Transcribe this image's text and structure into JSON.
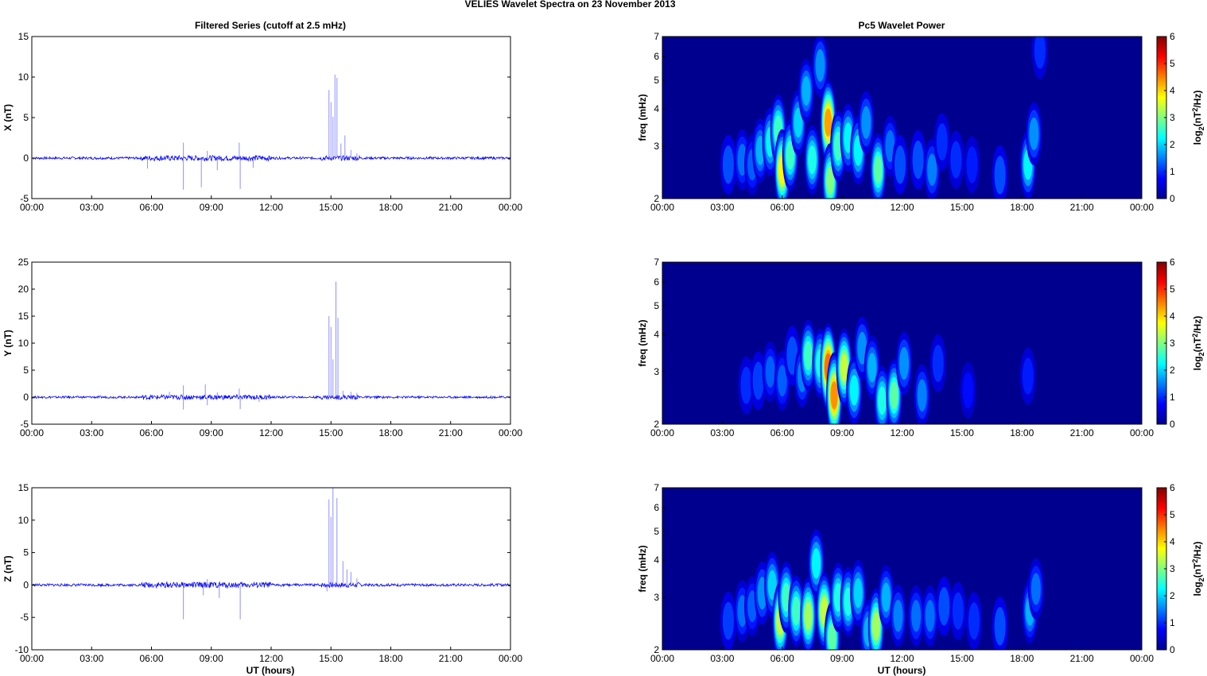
{
  "figure_title": "VELIES Wavelet Spectra on 23 November  2013",
  "left_title": "Filtered Series (cutoff at 2.5 mHz)",
  "right_title": "Pc5 Wavelet Power",
  "xlabel": "UT (hours)",
  "spectra_ylabel": "freq (mHz)",
  "colorbar_label_base": "log",
  "colorbar_label_sub": "2",
  "colorbar_label_mid": "(nT",
  "colorbar_label_sup": "2",
  "colorbar_label_end": "/Hz)",
  "colormap": [
    "#00008f",
    "#0000ff",
    "#0080ff",
    "#00ffff",
    "#80ff80",
    "#ffff00",
    "#ff8000",
    "#ff0000",
    "#800000"
  ],
  "series_color": "#0000ff",
  "spike_color": "#8f8fff",
  "chart_data": [
    {
      "type": "line",
      "title": "Filtered Series (cutoff at 2.5 mHz)",
      "xlabel": "",
      "ylabel": "X (nT)",
      "xlim": [
        0,
        24
      ],
      "ylim": [
        -5,
        15
      ],
      "xticks": [
        "00:00",
        "03:00",
        "06:00",
        "09:00",
        "12:00",
        "15:00",
        "18:00",
        "21:00",
        "00:00"
      ],
      "yticks": [
        -5,
        0,
        5,
        10,
        15
      ],
      "baseline_noise": 0.15,
      "spikes": [
        [
          5.8,
          -1.3
        ],
        [
          7.6,
          1.9
        ],
        [
          7.6,
          -3.9
        ],
        [
          8.5,
          -3.6
        ],
        [
          8.8,
          0.9
        ],
        [
          9.3,
          -1.5
        ],
        [
          10.4,
          1.9
        ],
        [
          10.45,
          -3.8
        ],
        [
          11.1,
          -1.2
        ],
        [
          14.9,
          8.4
        ],
        [
          15.0,
          6.9
        ],
        [
          15.1,
          5.1
        ],
        [
          15.2,
          10.3
        ],
        [
          15.3,
          9.9
        ],
        [
          15.5,
          1.8
        ],
        [
          15.7,
          2.8
        ],
        [
          16.0,
          1.0
        ],
        [
          16.3,
          0.6
        ]
      ]
    },
    {
      "type": "line",
      "title": "",
      "xlabel": "",
      "ylabel": "Y (nT)",
      "xlim": [
        0,
        24
      ],
      "ylim": [
        -5,
        25
      ],
      "xticks": [
        "00:00",
        "03:00",
        "06:00",
        "09:00",
        "12:00",
        "15:00",
        "18:00",
        "21:00",
        "00:00"
      ],
      "yticks": [
        -5,
        0,
        5,
        10,
        15,
        20,
        25
      ],
      "baseline_noise": 0.2,
      "spikes": [
        [
          6.9,
          1.0
        ],
        [
          7.6,
          2.2
        ],
        [
          7.6,
          -2.3
        ],
        [
          8.7,
          2.4
        ],
        [
          8.8,
          -1.5
        ],
        [
          9.3,
          0.9
        ],
        [
          10.4,
          1.6
        ],
        [
          10.45,
          -2.2
        ],
        [
          11.4,
          -0.9
        ],
        [
          14.9,
          15.0
        ],
        [
          15.0,
          13.0
        ],
        [
          15.1,
          7.0
        ],
        [
          15.25,
          21.4
        ],
        [
          15.35,
          14.7
        ],
        [
          15.6,
          1.2
        ],
        [
          16.0,
          1.0
        ],
        [
          16.3,
          0.8
        ]
      ]
    },
    {
      "type": "line",
      "title": "",
      "xlabel": "UT (hours)",
      "ylabel": "Z (nT)",
      "xlim": [
        0,
        24
      ],
      "ylim": [
        -10,
        15
      ],
      "xticks": [
        "00:00",
        "03:00",
        "06:00",
        "09:00",
        "12:00",
        "15:00",
        "18:00",
        "21:00",
        "00:00"
      ],
      "yticks": [
        -10,
        -5,
        0,
        5,
        10,
        15
      ],
      "baseline_noise": 0.2,
      "spikes": [
        [
          7.6,
          -5.3
        ],
        [
          8.6,
          -1.6
        ],
        [
          8.8,
          0.9
        ],
        [
          9.4,
          -2.0
        ],
        [
          10.45,
          -5.3
        ],
        [
          14.8,
          -1.0
        ],
        [
          14.9,
          13.2
        ],
        [
          15.0,
          10.5
        ],
        [
          15.1,
          15.0
        ],
        [
          15.3,
          13.4
        ],
        [
          15.6,
          3.7
        ],
        [
          15.8,
          2.4
        ],
        [
          16.0,
          2.0
        ],
        [
          16.3,
          1.0
        ]
      ]
    },
    {
      "type": "heatmap",
      "title": "Pc5 Wavelet Power",
      "xlabel": "",
      "ylabel": "freq (mHz)",
      "xlim": [
        0,
        24
      ],
      "ylim": [
        2,
        7
      ],
      "yscale": "log",
      "xticks": [
        "00:00",
        "03:00",
        "06:00",
        "09:00",
        "12:00",
        "15:00",
        "18:00",
        "21:00",
        "00:00"
      ],
      "yticks": [
        2,
        3,
        4,
        5,
        6,
        7
      ],
      "clim": [
        0,
        6
      ],
      "cticks": [
        0,
        1,
        2,
        3,
        4,
        5,
        6
      ],
      "blobs": [
        [
          3.3,
          2.6,
          1.2
        ],
        [
          4.0,
          2.7,
          1.4
        ],
        [
          4.5,
          2.6,
          1.3
        ],
        [
          4.9,
          2.9,
          1.8
        ],
        [
          5.4,
          3.1,
          2.2
        ],
        [
          5.8,
          3.4,
          2.6
        ],
        [
          6.0,
          2.5,
          3.8
        ],
        [
          6.4,
          2.8,
          2.6
        ],
        [
          6.8,
          3.6,
          2.0
        ],
        [
          7.2,
          4.6,
          1.8
        ],
        [
          7.5,
          2.7,
          2.4
        ],
        [
          7.9,
          5.6,
          1.6
        ],
        [
          8.3,
          3.6,
          4.3
        ],
        [
          8.4,
          2.3,
          3.0
        ],
        [
          8.8,
          3.0,
          2.6
        ],
        [
          9.3,
          3.2,
          2.2
        ],
        [
          9.8,
          2.9,
          2.2
        ],
        [
          10.2,
          3.6,
          1.6
        ],
        [
          10.8,
          2.5,
          2.8
        ],
        [
          11.4,
          3.0,
          1.4
        ],
        [
          11.9,
          2.6,
          1.2
        ],
        [
          12.8,
          2.7,
          1.2
        ],
        [
          13.5,
          2.5,
          1.5
        ],
        [
          14.0,
          3.1,
          1.0
        ],
        [
          14.7,
          2.7,
          1.0
        ],
        [
          15.5,
          2.6,
          0.9
        ],
        [
          16.9,
          2.4,
          1.2
        ],
        [
          18.3,
          2.6,
          2.2
        ],
        [
          18.6,
          3.3,
          1.6
        ],
        [
          18.9,
          6.3,
          1.0
        ]
      ]
    },
    {
      "type": "heatmap",
      "title": "",
      "xlabel": "",
      "ylabel": "freq (mHz)",
      "xlim": [
        0,
        24
      ],
      "ylim": [
        2,
        7
      ],
      "yscale": "log",
      "xticks": [
        "00:00",
        "03:00",
        "06:00",
        "09:00",
        "12:00",
        "15:00",
        "18:00",
        "21:00",
        "00:00"
      ],
      "yticks": [
        2,
        3,
        4,
        5,
        6,
        7
      ],
      "clim": [
        0,
        6
      ],
      "cticks": [
        0,
        1,
        2,
        3,
        4,
        5,
        6
      ],
      "blobs": [
        [
          4.2,
          2.7,
          1.0
        ],
        [
          4.8,
          2.8,
          1.1
        ],
        [
          5.4,
          3.0,
          1.3
        ],
        [
          6.0,
          2.8,
          1.3
        ],
        [
          6.5,
          3.4,
          1.2
        ],
        [
          7.0,
          2.9,
          1.5
        ],
        [
          7.3,
          3.4,
          2.6
        ],
        [
          7.9,
          3.2,
          2.4
        ],
        [
          8.3,
          3.1,
          4.6
        ],
        [
          8.6,
          2.5,
          4.4
        ],
        [
          9.1,
          3.1,
          3.4
        ],
        [
          9.6,
          2.6,
          2.2
        ],
        [
          10.0,
          3.6,
          1.6
        ],
        [
          10.5,
          3.1,
          1.8
        ],
        [
          11.0,
          2.4,
          2.4
        ],
        [
          11.6,
          2.5,
          2.8
        ],
        [
          12.1,
          3.2,
          1.6
        ],
        [
          13.0,
          2.5,
          1.5
        ],
        [
          13.8,
          3.2,
          1.0
        ],
        [
          15.3,
          2.6,
          0.8
        ],
        [
          18.3,
          2.9,
          0.9
        ]
      ]
    },
    {
      "type": "heatmap",
      "title": "",
      "xlabel": "UT (hours)",
      "ylabel": "freq (mHz)",
      "xlim": [
        0,
        24
      ],
      "ylim": [
        2,
        7
      ],
      "yscale": "log",
      "xticks": [
        "00:00",
        "03:00",
        "06:00",
        "09:00",
        "12:00",
        "15:00",
        "18:00",
        "21:00",
        "00:00"
      ],
      "yticks": [
        2,
        3,
        4,
        5,
        6,
        7
      ],
      "clim": [
        0,
        6
      ],
      "cticks": [
        0,
        1,
        2,
        3,
        4,
        5,
        6
      ],
      "blobs": [
        [
          3.3,
          2.5,
          1.1
        ],
        [
          4.0,
          2.7,
          1.4
        ],
        [
          4.5,
          2.8,
          1.3
        ],
        [
          5.0,
          3.1,
          1.6
        ],
        [
          5.5,
          3.3,
          2.0
        ],
        [
          5.9,
          2.5,
          3.4
        ],
        [
          6.2,
          3.0,
          2.6
        ],
        [
          6.7,
          2.7,
          2.6
        ],
        [
          7.3,
          2.6,
          3.2
        ],
        [
          7.7,
          3.9,
          2.2
        ],
        [
          8.1,
          2.7,
          3.4
        ],
        [
          8.5,
          2.2,
          2.8
        ],
        [
          8.8,
          3.0,
          2.4
        ],
        [
          9.3,
          2.9,
          2.4
        ],
        [
          9.8,
          3.1,
          2.0
        ],
        [
          10.3,
          2.3,
          1.8
        ],
        [
          10.7,
          2.4,
          3.2
        ],
        [
          11.2,
          3.0,
          1.8
        ],
        [
          11.8,
          2.6,
          1.5
        ],
        [
          12.7,
          2.6,
          1.4
        ],
        [
          13.4,
          2.6,
          1.4
        ],
        [
          14.1,
          2.8,
          1.2
        ],
        [
          14.8,
          2.7,
          1.0
        ],
        [
          15.6,
          2.5,
          1.0
        ],
        [
          16.9,
          2.4,
          1.2
        ],
        [
          18.4,
          2.7,
          1.8
        ],
        [
          18.7,
          3.2,
          1.4
        ]
      ]
    }
  ]
}
